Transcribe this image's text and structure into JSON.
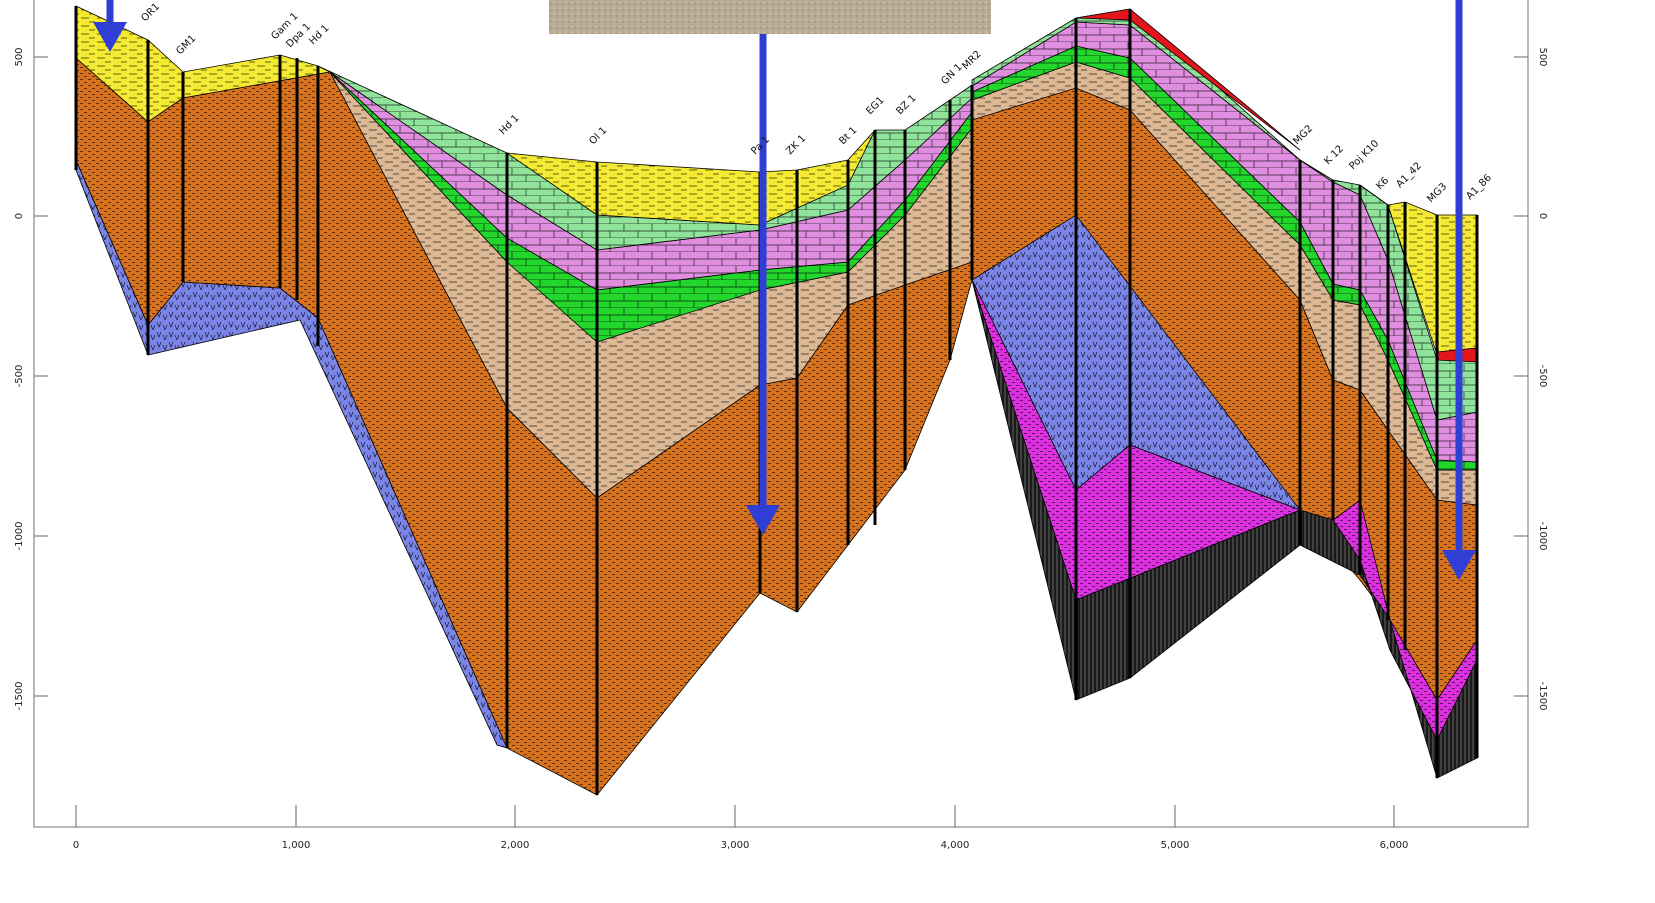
{
  "section": {
    "x_ticks": [
      "0",
      "1,000",
      "2,000",
      "3,000",
      "4,000",
      "5,000",
      "6,000"
    ],
    "y_ticks_left": [
      "500",
      "0",
      "-500",
      "-1000",
      "-1500"
    ],
    "y_ticks_right": [
      "500",
      "0",
      "-500",
      "-1000",
      "-1500"
    ],
    "wells": [
      {
        "name": "OR1"
      },
      {
        "name": "GM1"
      },
      {
        "name": "Gam 1"
      },
      {
        "name": "Dpa 1"
      },
      {
        "name": "Hd 1"
      },
      {
        "name": "Hd 1"
      },
      {
        "name": "Ol 1"
      },
      {
        "name": "Pa 1"
      },
      {
        "name": "ZK 1"
      },
      {
        "name": "Bt 1"
      },
      {
        "name": "EG1"
      },
      {
        "name": "BZ 1"
      },
      {
        "name": "GN 1"
      },
      {
        "name": "MR2"
      },
      {
        "name": "MG2"
      },
      {
        "name": "K 12"
      },
      {
        "name": "Poj K10"
      },
      {
        "name": "K6"
      },
      {
        "name": "A1_42"
      },
      {
        "name": "MG3"
      },
      {
        "name": "A1_86"
      }
    ],
    "colors": {
      "yellow": "#f5ea32",
      "light_green": "#8fe39a",
      "pink": "#e08ee0",
      "green": "#22d62c",
      "tan": "#ddb894",
      "orange": "#d8711c",
      "blue": "#7b85e8",
      "magenta": "#de2ee2",
      "black": "#1a1a1a",
      "red": "#e3161c",
      "arrow": "#2f3fd6"
    }
  }
}
